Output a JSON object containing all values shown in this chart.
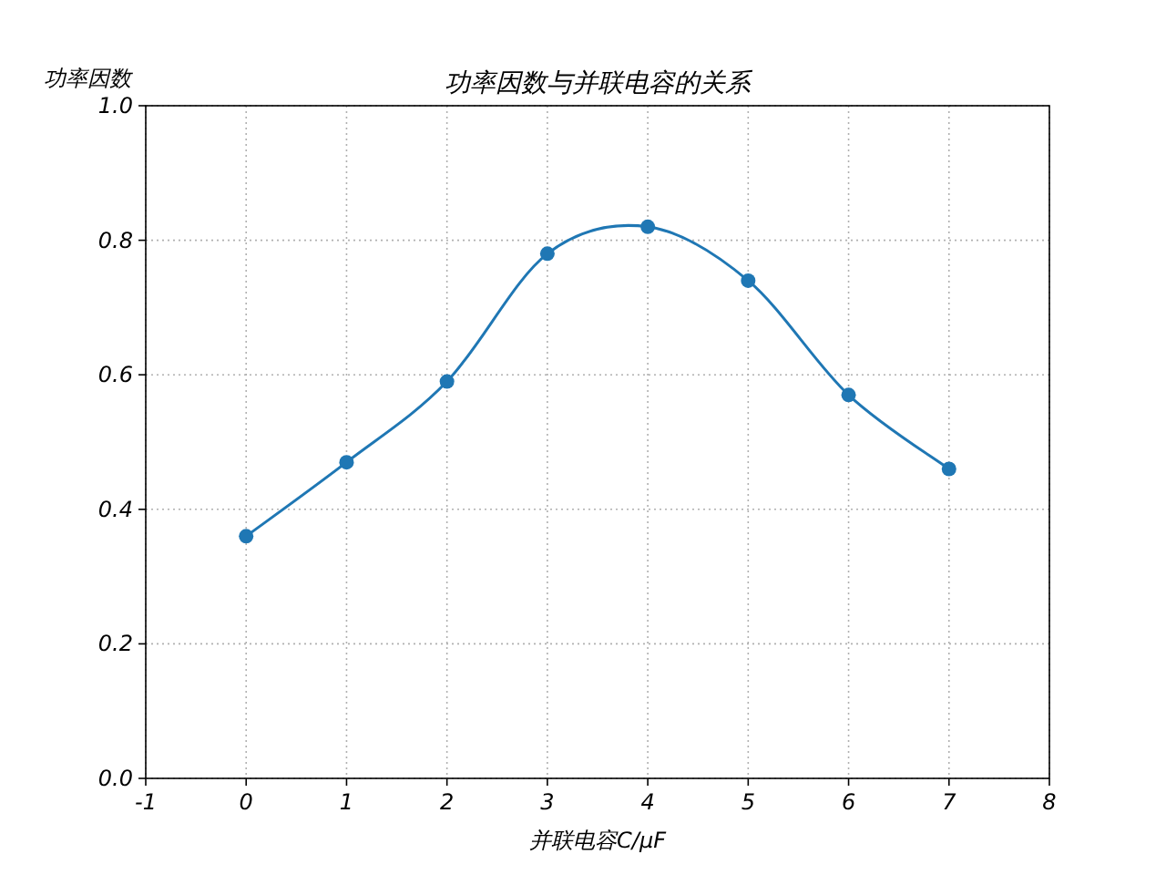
{
  "chart_data": {
    "type": "line",
    "title": "功率因数与并联电容的关系",
    "xlabel": "并联电容C/μF",
    "ylabel": "功率因数",
    "x": [
      0,
      1,
      2,
      3,
      4,
      5,
      6,
      7
    ],
    "series": [
      {
        "color": "#1f77b4",
        "values": [
          0.36,
          0.47,
          0.59,
          0.78,
          0.82,
          0.74,
          0.57,
          0.46
        ]
      }
    ],
    "xlim": [
      -1,
      8
    ],
    "ylim": [
      0,
      1
    ],
    "xticks": [
      -1,
      0,
      1,
      2,
      3,
      4,
      5,
      6,
      7,
      8
    ],
    "yticks": [
      {
        "value": 0,
        "label": "0.0"
      },
      {
        "value": 0.2,
        "label": "0.2"
      },
      {
        "value": 0.4,
        "label": "0.4"
      },
      {
        "value": 0.6,
        "label": "0.6"
      },
      {
        "value": 0.8,
        "label": "0.8"
      },
      {
        "value": 1,
        "label": "1.0"
      }
    ],
    "grid": true,
    "marker": "circle",
    "line_style": "solid"
  }
}
